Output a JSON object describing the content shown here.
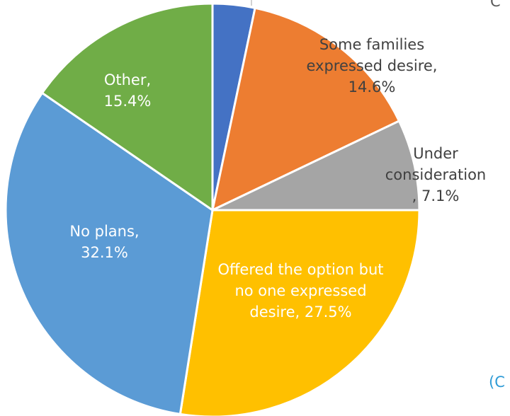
{
  "chart_data": {
    "type": "pie",
    "start_angle_deg": 0,
    "direction": "clockwise",
    "slices": [
      {
        "label": "",
        "value": 3.3,
        "color": "#4472C4"
      },
      {
        "label": "Some families\nexpressed desire,\n14.6%",
        "value": 14.6,
        "color": "#ED7D31"
      },
      {
        "label": "Under\nconsideration\n, 7.1%",
        "value": 7.1,
        "color": "#A5A5A5"
      },
      {
        "label": "Offered the option but\nno one expressed\ndesire, 27.5%",
        "value": 27.5,
        "color": "#FFC000"
      },
      {
        "label": "No plans,\n32.1%",
        "value": 32.1,
        "color": "#5B9BD5"
      },
      {
        "label": "Other,\n15.4%",
        "value": 15.4,
        "color": "#70AD47"
      }
    ],
    "label_colors": [
      "#404040",
      "#404040",
      "#404040",
      "#ffffff",
      "#ffffff",
      "#ffffff"
    ],
    "edge_texts": {
      "top_right": "C",
      "bottom_right": "(C"
    },
    "edge_text_colors": {
      "top_right": "#595959",
      "bottom_right": "#2E9BD6"
    }
  }
}
